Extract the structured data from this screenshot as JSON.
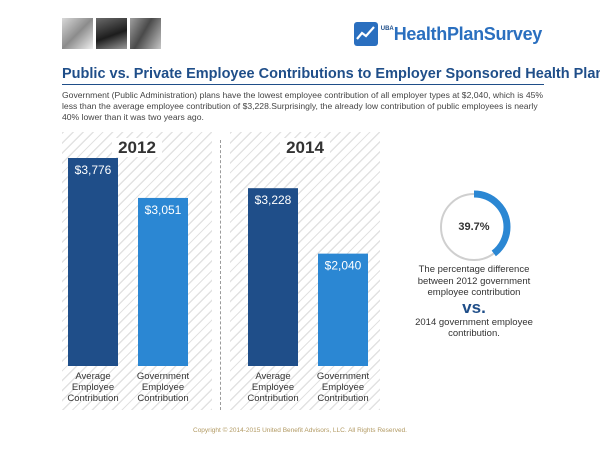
{
  "header": {
    "logo_small": "UBA",
    "logo_text": "HealthPlanSurvey"
  },
  "title": "Public vs. Private Employee Contributions to Employer Sponsored Health Plans",
  "description": "Government (Public Administration) plans have the lowest employee contribution of all employer types at $2,040, which is 45% less than the average employee contribution of $3,228.Surprisingly, the already low contribution of public employees is nearly 40% lower than it was two years ago.",
  "colors": {
    "dark_bar": "#1f4e89",
    "light_bar": "#2b87d3",
    "accent": "#2b87d3",
    "title": "#1f4e89"
  },
  "chart_data": [
    {
      "type": "bar",
      "title": "2012",
      "categories": [
        "Average Employee Contribution",
        "Government Employee Contribution"
      ],
      "values": [
        3776,
        3051
      ],
      "labels": [
        "$3,776",
        "$3,051"
      ],
      "xlabel": "",
      "ylabel": "",
      "ylim": [
        0,
        3776
      ],
      "grid": false
    },
    {
      "type": "bar",
      "title": "2014",
      "categories": [
        "Average Employee Contribution",
        "Government Employee Contribution"
      ],
      "values": [
        3228,
        2040
      ],
      "labels": [
        "$3,228",
        "$2,040"
      ],
      "xlabel": "",
      "ylabel": "",
      "ylim": [
        0,
        3776
      ],
      "grid": false
    }
  ],
  "bar_label_lines": [
    [
      "Average",
      "Employee",
      "Contribution"
    ],
    [
      "Government",
      "Employee",
      "Contribution"
    ]
  ],
  "side_stat": {
    "percent_value": 39.7,
    "percent_label": "39.7%",
    "text_top": "The percentage difference between 2012 government employee contribution",
    "vs": "vs.",
    "text_bottom": "2014 government employee contribution."
  },
  "copyright": "Copyright © 2014-2015 United Benefit Advisors, LLC.  All Rights Reserved."
}
